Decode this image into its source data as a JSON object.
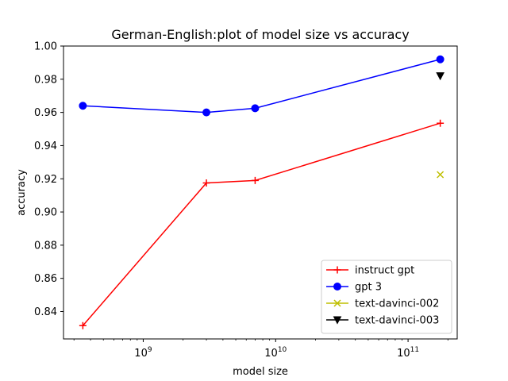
{
  "chart_data": {
    "type": "line",
    "title": "German-English:plot of model size vs accuracy",
    "xlabel": "model size",
    "ylabel": "accuracy",
    "xscale": "log",
    "xlim": [
      250000000,
      235000000000
    ],
    "ylim": [
      0.8235,
      1.0
    ],
    "grid": false,
    "legend_position": "lower right",
    "x_ticks": [
      {
        "value": 1000000000,
        "base": "10",
        "exp": "9"
      },
      {
        "value": 10000000000,
        "base": "10",
        "exp": "10"
      },
      {
        "value": 100000000000,
        "base": "10",
        "exp": "11"
      }
    ],
    "y_ticks": [
      0.84,
      0.86,
      0.88,
      0.9,
      0.92,
      0.94,
      0.96,
      0.98,
      1.0
    ],
    "y_tick_labels": [
      "0.84",
      "0.86",
      "0.88",
      "0.90",
      "0.92",
      "0.94",
      "0.96",
      "0.98",
      "1.00"
    ],
    "series": [
      {
        "name": "instruct gpt",
        "color": "#ff0000",
        "marker": "plus",
        "line": true,
        "x": [
          350000000,
          3000000000,
          7000000000,
          175000000000
        ],
        "y": [
          0.8315,
          0.9175,
          0.919,
          0.9535
        ]
      },
      {
        "name": "gpt 3",
        "color": "#0000ff",
        "marker": "circle",
        "line": true,
        "x": [
          350000000,
          3000000000,
          7000000000,
          175000000000
        ],
        "y": [
          0.964,
          0.96,
          0.9625,
          0.992
        ]
      },
      {
        "name": "text-davinci-002",
        "color": "#bfbf00",
        "marker": "x",
        "line": false,
        "x": [
          175000000000
        ],
        "y": [
          0.9225
        ]
      },
      {
        "name": "text-davinci-003",
        "color": "#000000",
        "marker": "triangle-down",
        "line": false,
        "x": [
          175000000000
        ],
        "y": [
          0.982
        ]
      }
    ]
  }
}
